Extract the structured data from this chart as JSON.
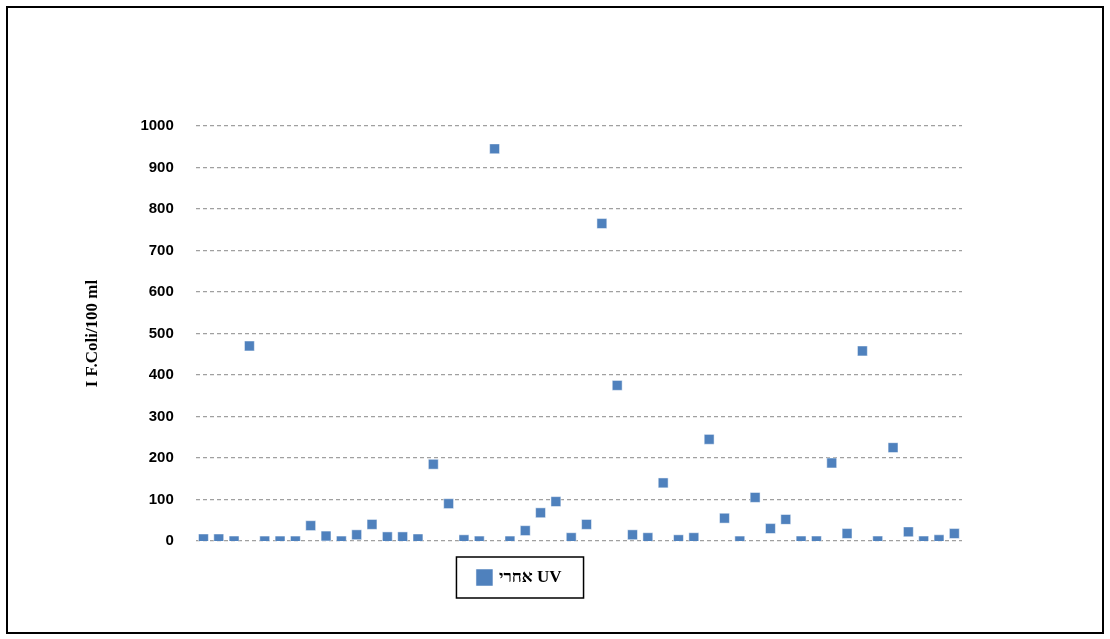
{
  "chart_data": {
    "type": "scatter",
    "ylabel": "I F.Coli/100 ml",
    "categories": [
      null,
      null,
      null,
      null,
      null,
      null,
      null,
      null,
      null,
      null,
      null,
      null,
      null,
      null,
      null,
      null,
      null,
      null,
      null,
      null,
      null,
      null,
      null,
      null,
      null,
      null,
      null,
      null,
      null,
      null,
      null,
      null,
      null,
      null,
      null,
      null,
      null,
      null,
      null,
      null,
      null,
      null,
      null,
      null,
      null,
      null,
      null,
      null,
      null,
      null
    ],
    "series": [
      {
        "name": "אחרי UV",
        "color": "#4f81bd",
        "values": [
          5,
          5,
          0,
          470,
          0,
          0,
          0,
          37,
          12,
          0,
          15,
          40,
          10,
          10,
          5,
          185,
          90,
          3,
          0,
          945,
          0,
          25,
          68,
          95,
          8,
          40,
          765,
          375,
          15,
          8,
          140,
          3,
          8,
          245,
          55,
          0,
          105,
          30,
          52,
          0,
          0,
          188,
          18,
          458,
          0,
          225,
          22,
          0,
          3,
          18
        ]
      }
    ],
    "ylim": [
      0,
      1000
    ],
    "yticks": [
      0,
      100,
      200,
      300,
      400,
      500,
      600,
      700,
      800,
      900,
      1000
    ],
    "grid": "y",
    "legend": "bottom",
    "marker": "square",
    "tick_labels": "y"
  }
}
